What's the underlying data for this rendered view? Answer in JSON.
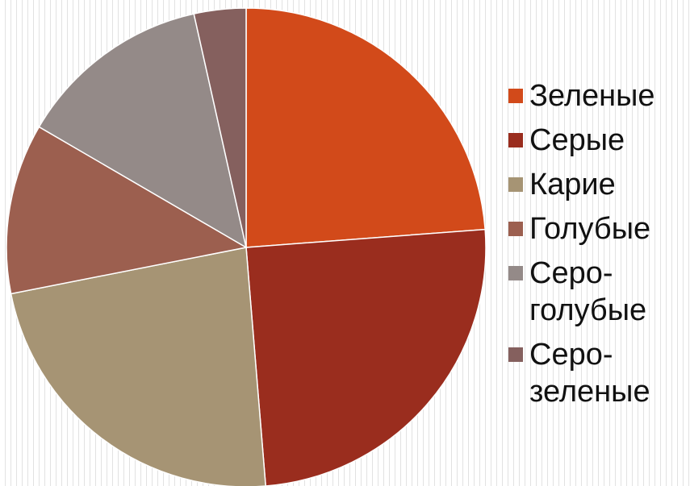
{
  "chart_data": {
    "type": "pie",
    "categories": [
      "Зеленые",
      "Серые",
      "Карие",
      "Голубые",
      "Серо-голубые",
      "Серо-зеленые"
    ],
    "values": [
      23.8,
      24.9,
      23.2,
      11.5,
      13.1,
      3.5
    ],
    "colors": [
      "#d24a1a",
      "#9a2d1e",
      "#a69474",
      "#9c5f4f",
      "#948a88",
      "#85605e"
    ],
    "legend": "right"
  }
}
